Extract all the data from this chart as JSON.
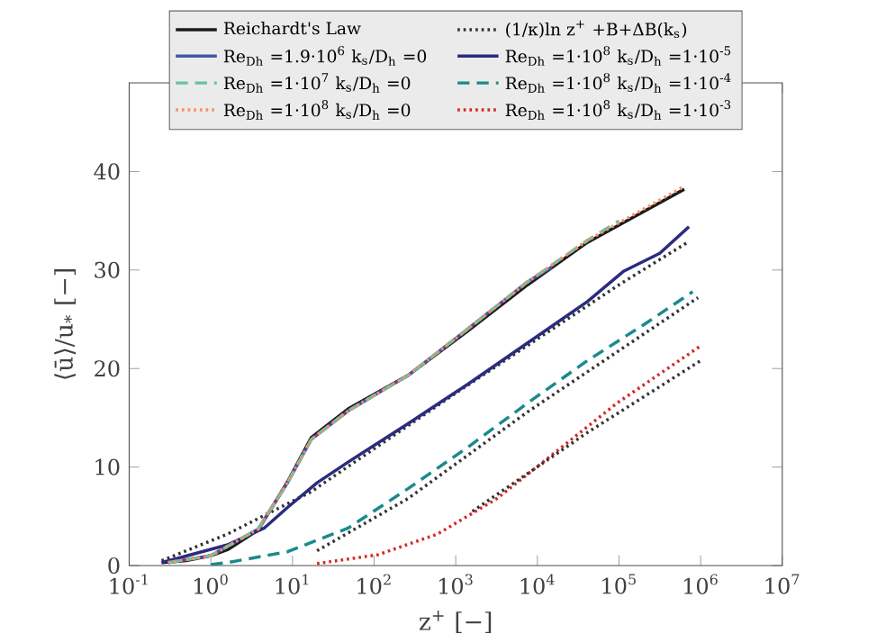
{
  "chart_data": {
    "type": "line",
    "xlabel": "z$^{+}$ [−]",
    "ylabel": "⟨ū⟩/u$_{*}$ [−]",
    "log": "x",
    "legend": "top",
    "xlim": [
      0.1,
      10000000
    ],
    "ylim": [
      0,
      49
    ],
    "xticks": [
      {
        "value": 0.1,
        "label": "10$^{-1}$"
      },
      {
        "value": 1,
        "label": "10$^{0}$"
      },
      {
        "value": 10,
        "label": "10$^{1}$"
      },
      {
        "value": 100,
        "label": "10$^{2}$"
      },
      {
        "value": 1000,
        "label": "10$^{3}$"
      },
      {
        "value": 10000,
        "label": "10$^{4}$"
      },
      {
        "value": 100000,
        "label": "10$^{5}$"
      },
      {
        "value": 1000000,
        "label": "10$^{6}$"
      },
      {
        "value": 10000000,
        "label": "10$^{7}$"
      }
    ],
    "yticks": [
      0,
      10,
      20,
      30,
      40
    ],
    "series": [
      {
        "name": "Reichardt's Law",
        "color": "#1a1a1a",
        "line_style": "solid",
        "x": [
          0.25,
          0.5,
          1,
          1.6,
          3.8,
          8.7,
          17,
          48,
          260,
          1400,
          7600,
          41000,
          630000
        ],
        "values": [
          0.3,
          0.5,
          1,
          1.6,
          3.6,
          8.5,
          13.0,
          15.9,
          19.3,
          23.8,
          28.5,
          32.8,
          38.2
        ]
      },
      {
        "name": "(1/κ)ln z$^{+}$ +B+ΔB(k$_{s}$)",
        "color": "#333333",
        "line_style": "dotted",
        "x": [
          0.25,
          1.6,
          17,
          1000,
          100000,
          720000
        ],
        "values": [
          0.5,
          3.2,
          7.5,
          17.5,
          28.5,
          32.9
        ]
      },
      {
        "name": "Re$_{Dh}$ =1.9·10$^{6}$  k$_{s}$/D$_{h}$ =0",
        "color": "#4656a8",
        "line_style": "solid",
        "x": [
          0.3,
          1,
          3.8,
          8.7,
          17,
          48,
          260,
          1400,
          7600,
          15000
        ],
        "values": [
          0.3,
          1,
          3.7,
          8.4,
          12.8,
          15.7,
          19.3,
          24.0,
          28.8,
          30.3
        ]
      },
      {
        "name": "Re$_{Dh}$ =1·10$^{8}$  k$_{s}$/D$_{h}$ =1·10$^{-5}$",
        "color": "#2b2b80",
        "line_style": "solid",
        "x": [
          0.25,
          1.6,
          4.5,
          8.7,
          20,
          48,
          260,
          1400,
          7600,
          41000,
          115000,
          316000,
          720000
        ],
        "values": [
          0.3,
          2.1,
          3.8,
          5.9,
          8.4,
          10.5,
          14.4,
          18.4,
          22.6,
          26.8,
          29.9,
          31.7,
          34.4
        ]
      },
      {
        "name": "Re$_{Dh}$ =1·10$^{7}$  k$_{s}$/D$_{h}$ =0",
        "color": "#66c2a5",
        "line_style": "dashed",
        "x": [
          0.3,
          1,
          3.8,
          8.7,
          17,
          48,
          260,
          1400,
          7600,
          41000,
          100000
        ],
        "values": [
          0.3,
          1,
          3.7,
          8.4,
          12.8,
          15.7,
          19.3,
          24.0,
          28.8,
          33.0,
          35.0
        ]
      },
      {
        "name": "Re$_{Dh}$ =1·10$^{8}$  k$_{s}$/D$_{h}$ =1·10$^{-4}$",
        "color": "#1b8a8a",
        "line_style": "dashed",
        "x": [
          1,
          1.6,
          8.7,
          48,
          260,
          1400,
          7600,
          41000,
          224000,
          800000
        ],
        "values": [
          0.1,
          0.3,
          1.4,
          3.8,
          7.8,
          12.0,
          16.5,
          20.8,
          24.7,
          27.8
        ]
      },
      {
        "name": "Re$_{Dh}$ =1·10$^{8}$  k$_{s}$/D$_{h}$ =0",
        "color": "#fc8d62",
        "line_style": "dotted",
        "x": [
          0.3,
          1,
          3.8,
          8.7,
          17,
          48,
          260,
          1400,
          7600,
          41000,
          630000
        ],
        "values": [
          0.3,
          1,
          3.7,
          8.4,
          12.8,
          15.7,
          19.3,
          24.0,
          28.8,
          33.0,
          38.5
        ]
      },
      {
        "name": "Re$_{Dh}$ =1·10$^{8}$  k$_{s}$/D$_{h}$ =1·10$^{-3}$",
        "color": "#d62728",
        "line_style": "dotted",
        "x": [
          20,
          112,
          600,
          3200,
          17800,
          95000,
          1000000
        ],
        "values": [
          0.2,
          1.1,
          3.2,
          6.8,
          11.7,
          16.5,
          22.3
        ]
      },
      {
        "color": "#333333",
        "line_style": "dotted",
        "x": [
          20,
          260,
          7600,
          930000
        ],
        "values": [
          1.5,
          6.8,
          15.6,
          27.2
        ]
      },
      {
        "color": "#333333",
        "line_style": "dotted",
        "x": [
          1600,
          41000,
          1000000
        ],
        "values": [
          5.5,
          13.5,
          20.8
        ]
      }
    ]
  }
}
